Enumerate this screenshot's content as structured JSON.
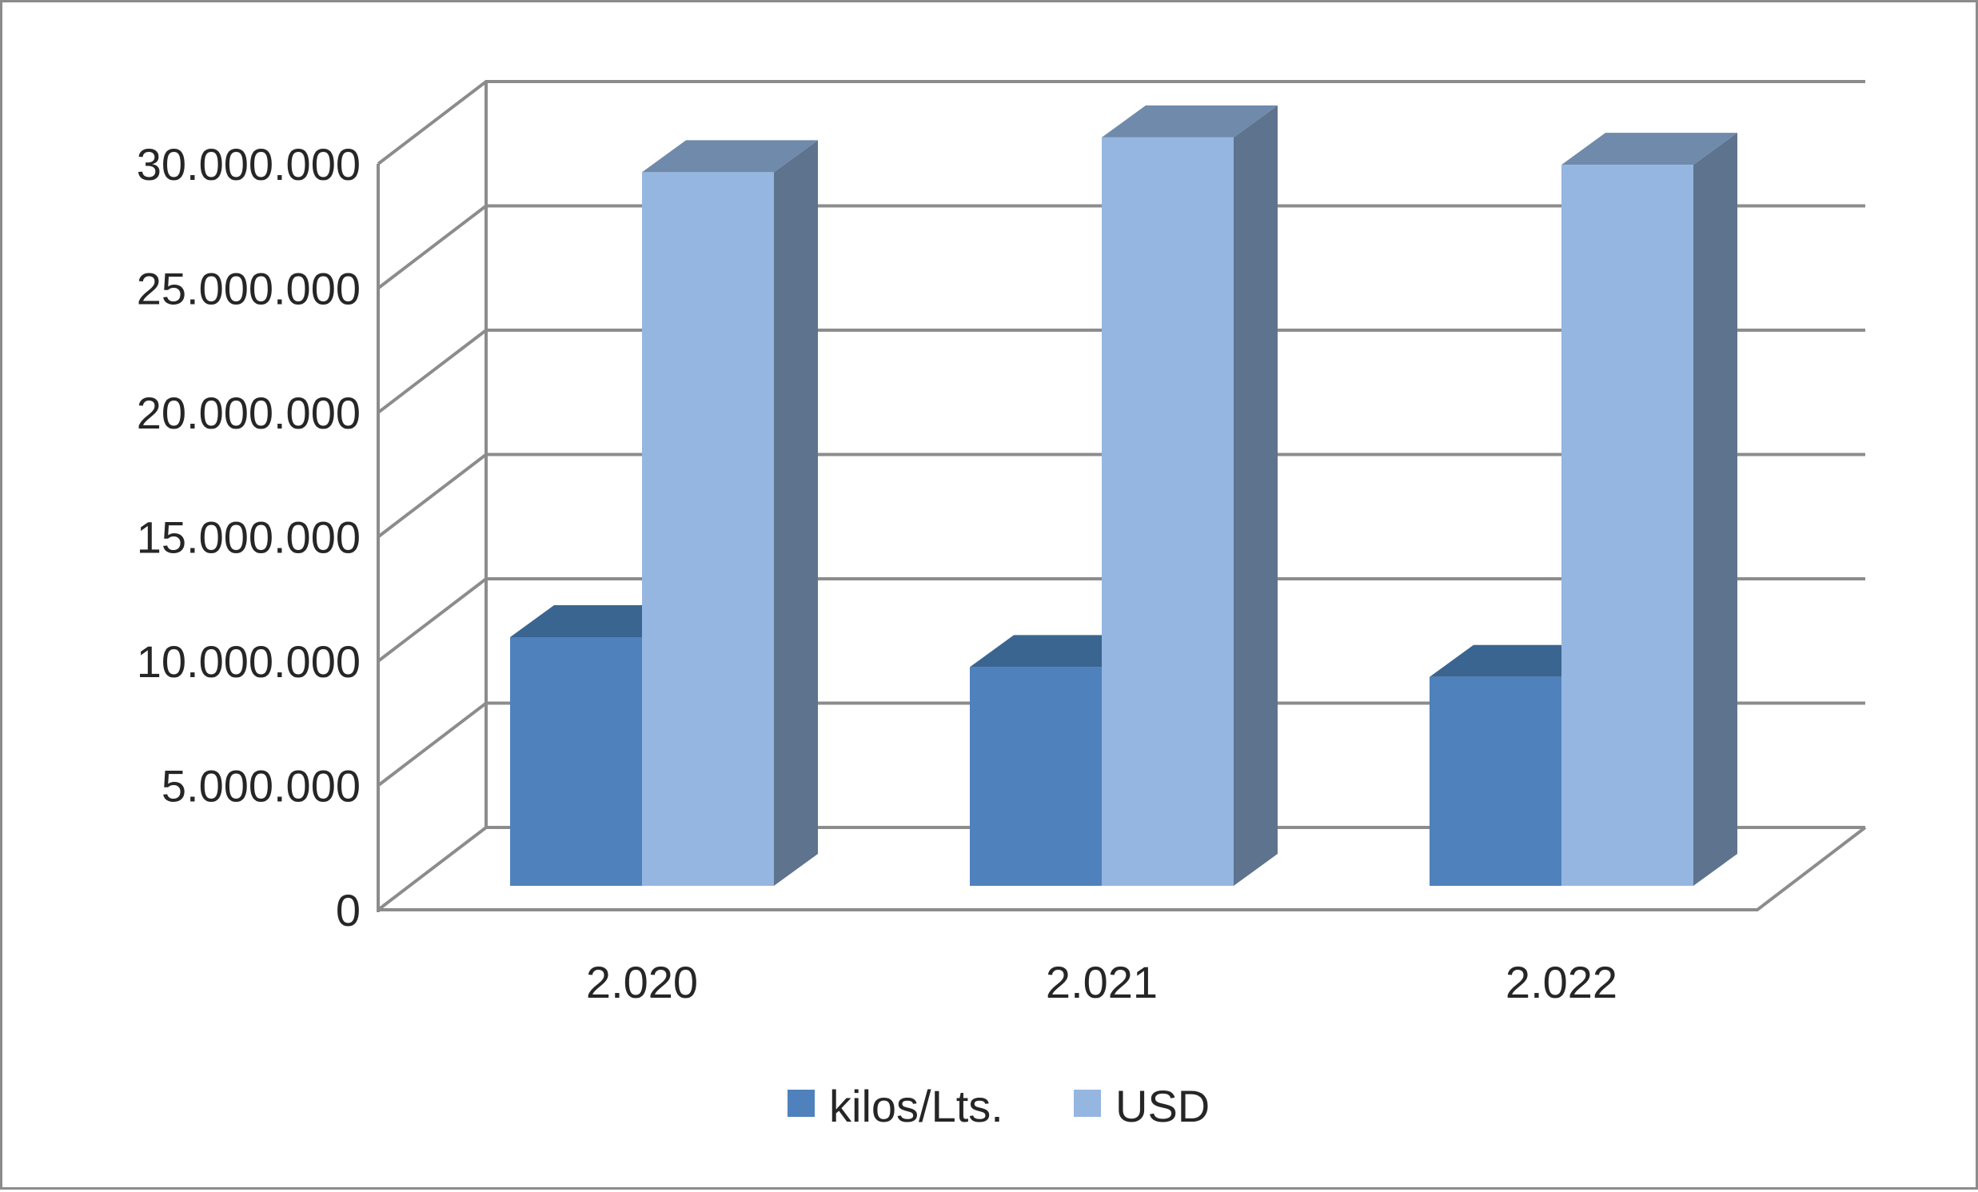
{
  "chart_data": {
    "type": "bar",
    "title": "",
    "xlabel": "",
    "ylabel": "",
    "categories": [
      "2.020",
      "2.021",
      "2.022"
    ],
    "series": [
      {
        "name": "kilos/Lts.",
        "values": [
          10000000,
          8800000,
          8400000
        ]
      },
      {
        "name": "USD",
        "values": [
          28700000,
          30100000,
          29000000
        ]
      }
    ],
    "ylim": [
      0,
      30000000
    ],
    "yticks": [
      0,
      5000000,
      10000000,
      15000000,
      20000000,
      25000000,
      30000000
    ],
    "ytick_labels": [
      "0",
      "5.000.000",
      "10.000.000",
      "15.000.000",
      "20.000.000",
      "25.000.000",
      "30.000.000"
    ],
    "grid": true,
    "three_d": true,
    "legend_position": "bottom",
    "colors": {
      "kilos_front": "#4f81bd",
      "kilos_top": "#3a6590",
      "kilos_side": "#34587e",
      "usd_front": "#95b6e0",
      "usd_top": "#6f8aab",
      "usd_side": "#5e738d",
      "grid": "#8c8c8c"
    }
  }
}
